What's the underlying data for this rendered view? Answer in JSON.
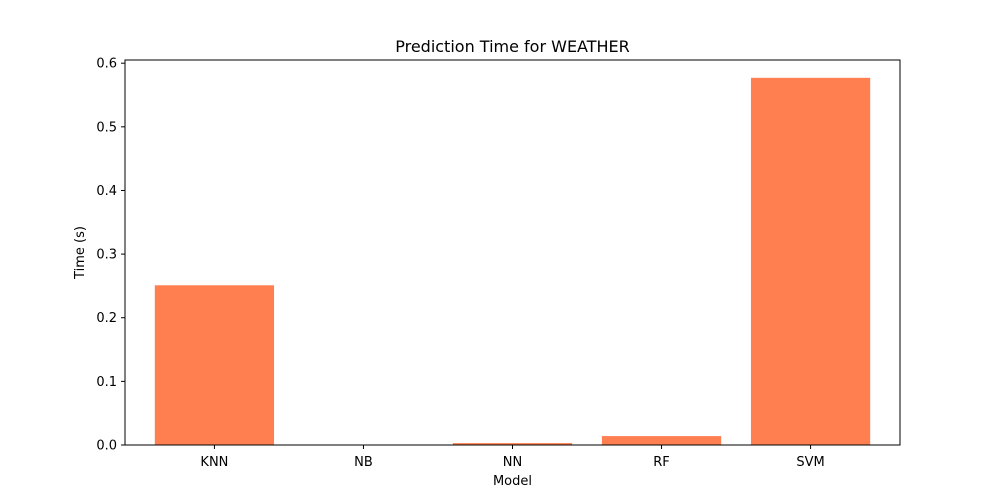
{
  "chart_data": {
    "type": "bar",
    "title": "Prediction Time for WEATHER",
    "xlabel": "Model",
    "ylabel": "Time (s)",
    "categories": [
      "KNN",
      "NB",
      "NN",
      "RF",
      "SVM"
    ],
    "values": [
      0.251,
      0.0005,
      0.003,
      0.014,
      0.577
    ],
    "ylim": [
      0,
      0.605
    ],
    "yticks": [
      "0.0",
      "0.1",
      "0.2",
      "0.3",
      "0.4",
      "0.5",
      "0.6"
    ],
    "bar_color": "#ff7f50",
    "grid": false,
    "legend": "none"
  }
}
